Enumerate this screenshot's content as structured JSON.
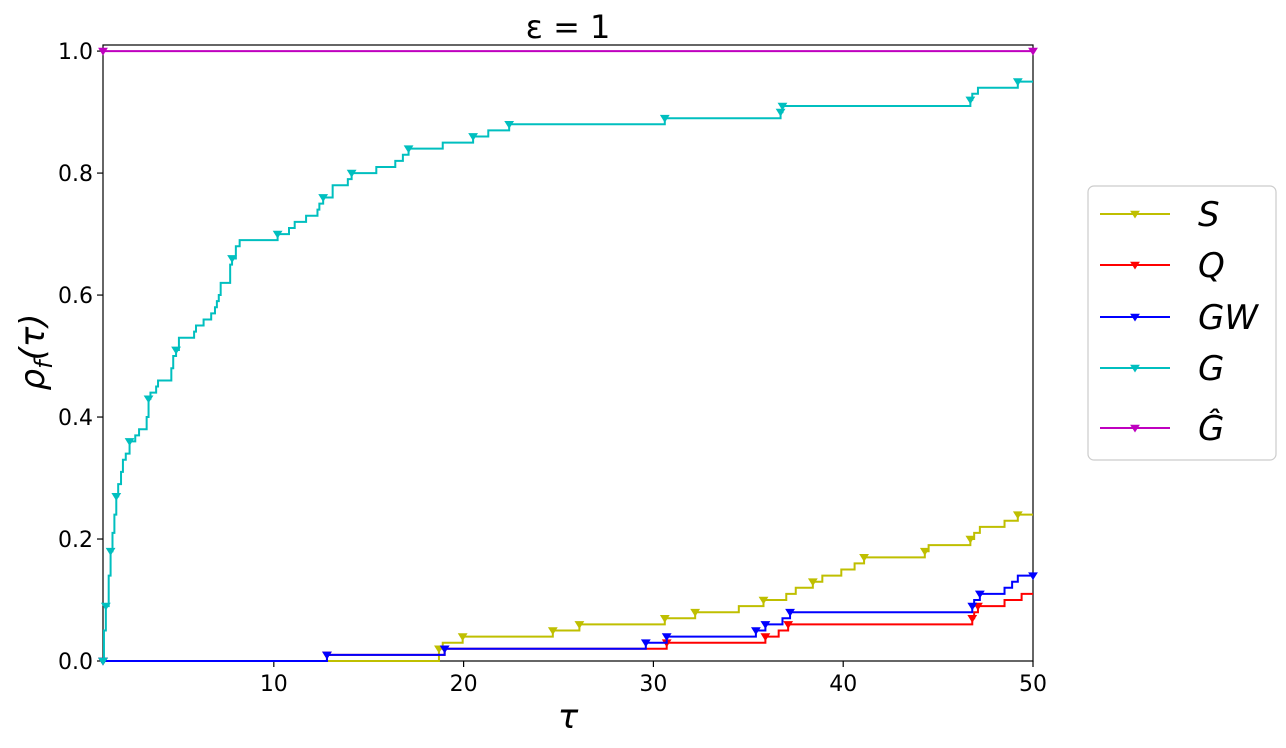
{
  "chart_data": {
    "type": "line",
    "title": "ε = 1",
    "xlabel": "τ",
    "ylabel": "ρ_f(τ)",
    "xlim": [
      1,
      50
    ],
    "ylim": [
      0,
      1.01
    ],
    "x_ticks": [
      10,
      20,
      30,
      40,
      50
    ],
    "y_ticks": [
      0.0,
      0.2,
      0.4,
      0.6,
      0.8,
      1.0
    ],
    "x_tick_labels": [
      "10",
      "20",
      "30",
      "40",
      "50"
    ],
    "y_tick_labels": [
      "0.0",
      "0.2",
      "0.4",
      "0.6",
      "0.8",
      "1.0"
    ],
    "grid": false,
    "legend_position": "outside-right",
    "series": [
      {
        "name": "S",
        "color": "#bfbf00",
        "steps": [
          [
            1,
            0
          ],
          [
            18.7,
            0.02
          ],
          [
            18.9,
            0.03
          ],
          [
            19.95,
            0.04
          ],
          [
            24.7,
            0.05
          ],
          [
            26.1,
            0.06
          ],
          [
            30.6,
            0.07
          ],
          [
            32.2,
            0.08
          ],
          [
            34.5,
            0.09
          ],
          [
            35.8,
            0.1
          ],
          [
            37.0,
            0.11
          ],
          [
            37.5,
            0.12
          ],
          [
            38.4,
            0.13
          ],
          [
            38.9,
            0.14
          ],
          [
            39.9,
            0.15
          ],
          [
            40.6,
            0.16
          ],
          [
            41.1,
            0.17
          ],
          [
            44.3,
            0.18
          ],
          [
            44.5,
            0.19
          ],
          [
            46.7,
            0.2
          ],
          [
            46.9,
            0.21
          ],
          [
            47.2,
            0.22
          ],
          [
            48.5,
            0.23
          ],
          [
            49.2,
            0.24
          ]
        ],
        "x_end": 50,
        "markers_x": [
          1,
          18.7,
          19.95,
          24.7,
          26.1,
          30.6,
          32.2,
          35.8,
          38.4,
          41.1,
          44.3,
          46.7,
          49.2
        ]
      },
      {
        "name": "Q",
        "color": "#ff0000",
        "steps": [
          [
            1,
            0
          ],
          [
            12.8,
            0.01
          ],
          [
            19.0,
            0.02
          ],
          [
            30.7,
            0.03
          ],
          [
            35.9,
            0.04
          ],
          [
            36.6,
            0.05
          ],
          [
            37.1,
            0.06
          ],
          [
            46.8,
            0.07
          ],
          [
            46.9,
            0.08
          ],
          [
            47.1,
            0.09
          ],
          [
            48.5,
            0.1
          ],
          [
            49.4,
            0.11
          ]
        ],
        "x_end": 50,
        "markers_x": [
          1,
          12.8,
          19.0,
          30.7,
          35.9,
          37.1,
          46.8,
          47.1
        ]
      },
      {
        "name": "GW",
        "color": "#0000ff",
        "steps": [
          [
            1,
            0
          ],
          [
            12.8,
            0.01
          ],
          [
            19.0,
            0.02
          ],
          [
            29.6,
            0.03
          ],
          [
            30.7,
            0.04
          ],
          [
            35.4,
            0.05
          ],
          [
            35.9,
            0.06
          ],
          [
            36.8,
            0.07
          ],
          [
            37.2,
            0.08
          ],
          [
            46.8,
            0.09
          ],
          [
            46.9,
            0.1
          ],
          [
            47.2,
            0.11
          ],
          [
            48.5,
            0.12
          ],
          [
            48.9,
            0.13
          ],
          [
            49.2,
            0.14
          ]
        ],
        "x_end": 50,
        "markers_x": [
          1,
          12.8,
          19.0,
          29.6,
          30.7,
          35.4,
          35.9,
          37.2,
          46.8,
          47.2,
          50
        ]
      },
      {
        "name": "G",
        "color": "#00bfbf",
        "steps": [
          [
            1,
            0
          ],
          [
            1.05,
            0.05
          ],
          [
            1.15,
            0.09
          ],
          [
            1.3,
            0.14
          ],
          [
            1.4,
            0.18
          ],
          [
            1.5,
            0.21
          ],
          [
            1.6,
            0.24
          ],
          [
            1.7,
            0.27
          ],
          [
            1.8,
            0.29
          ],
          [
            1.95,
            0.31
          ],
          [
            2.05,
            0.33
          ],
          [
            2.2,
            0.34
          ],
          [
            2.4,
            0.36
          ],
          [
            2.7,
            0.37
          ],
          [
            2.9,
            0.38
          ],
          [
            3.3,
            0.4
          ],
          [
            3.4,
            0.43
          ],
          [
            3.5,
            0.44
          ],
          [
            3.8,
            0.45
          ],
          [
            3.9,
            0.46
          ],
          [
            4.6,
            0.48
          ],
          [
            4.7,
            0.5
          ],
          [
            4.85,
            0.51
          ],
          [
            5.0,
            0.53
          ],
          [
            5.8,
            0.54
          ],
          [
            5.9,
            0.55
          ],
          [
            6.3,
            0.56
          ],
          [
            6.7,
            0.57
          ],
          [
            6.9,
            0.58
          ],
          [
            7.0,
            0.59
          ],
          [
            7.1,
            0.6
          ],
          [
            7.2,
            0.62
          ],
          [
            7.7,
            0.65
          ],
          [
            7.8,
            0.66
          ],
          [
            8.0,
            0.68
          ],
          [
            8.2,
            0.69
          ],
          [
            10.2,
            0.7
          ],
          [
            10.8,
            0.71
          ],
          [
            11.1,
            0.72
          ],
          [
            11.7,
            0.73
          ],
          [
            12.3,
            0.74
          ],
          [
            12.4,
            0.75
          ],
          [
            12.6,
            0.76
          ],
          [
            13.1,
            0.78
          ],
          [
            13.9,
            0.79
          ],
          [
            14.1,
            0.8
          ],
          [
            15.4,
            0.81
          ],
          [
            16.4,
            0.82
          ],
          [
            16.8,
            0.83
          ],
          [
            17.1,
            0.84
          ],
          [
            18.9,
            0.85
          ],
          [
            20.5,
            0.86
          ],
          [
            21.3,
            0.87
          ],
          [
            22.4,
            0.88
          ],
          [
            30.6,
            0.89
          ],
          [
            36.7,
            0.9
          ],
          [
            36.8,
            0.91
          ],
          [
            46.7,
            0.92
          ],
          [
            46.8,
            0.93
          ],
          [
            47.1,
            0.94
          ],
          [
            49.2,
            0.95
          ]
        ],
        "x_end": 50,
        "markers_x": [
          1,
          1.15,
          1.4,
          1.7,
          2.4,
          3.4,
          4.85,
          7.8,
          10.2,
          12.6,
          14.1,
          17.1,
          20.5,
          22.4,
          30.6,
          36.7,
          36.8,
          46.7,
          49.2
        ]
      },
      {
        "name": "Ĝ",
        "color": "#bf00bf",
        "steps": [
          [
            1,
            1.0
          ]
        ],
        "x_end": 50,
        "markers_x": [
          1,
          50
        ]
      }
    ],
    "legend": [
      "S",
      "Q",
      "GW",
      "G",
      "Ĝ"
    ]
  }
}
